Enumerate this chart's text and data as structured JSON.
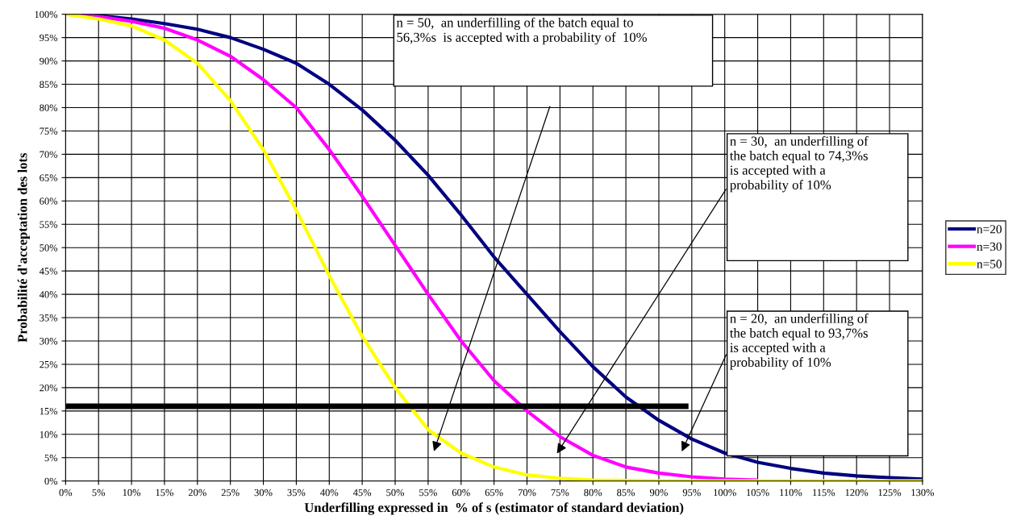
{
  "chart_data": {
    "type": "line",
    "xlabel": "Underfilling expressed in  % of s (estimator of standard deviation)",
    "ylabel": "Probabilité d'acceptation des lots",
    "x": [
      0,
      5,
      10,
      15,
      20,
      25,
      30,
      35,
      40,
      45,
      50,
      55,
      60,
      65,
      70,
      75,
      80,
      85,
      90,
      95,
      100,
      105,
      110,
      115,
      120,
      125,
      130
    ],
    "series": [
      {
        "name": "n=20",
        "color": "#000080",
        "values": [
          100,
          99.7,
          99,
          98,
          96.8,
          95,
          92.5,
          89.5,
          85,
          79.5,
          73,
          65.5,
          57,
          48,
          40,
          32,
          24.5,
          18,
          13,
          9,
          6,
          4,
          2.7,
          1.7,
          1.1,
          0.7,
          0.4
        ]
      },
      {
        "name": "n=30",
        "color": "#ff00ff",
        "values": [
          100,
          99.5,
          98.5,
          97,
          94.5,
          91,
          86,
          80,
          71,
          61,
          50.5,
          40,
          30,
          21.5,
          15,
          9.5,
          5.5,
          3,
          1.7,
          0.9,
          0.4,
          0.2,
          null,
          null,
          null,
          null,
          null
        ]
      },
      {
        "name": "n=50",
        "color": "#ffff00",
        "values": [
          100,
          99,
          97.5,
          94.5,
          89.5,
          81.5,
          71,
          58,
          44,
          31,
          20,
          11,
          6,
          3,
          1.3,
          0.6,
          0.2,
          0.1,
          0,
          0,
          0,
          0,
          0,
          0,
          0,
          0,
          0
        ]
      },
      {
        "type": "line",
        "color": "#000000",
        "x": [
          0,
          94.5
        ],
        "values": [
          16,
          16
        ]
      }
    ],
    "xlim": [
      0,
      130
    ],
    "xticks": [
      {
        "value": 0,
        "label": "0%"
      },
      {
        "value": 5,
        "label": "5%"
      },
      {
        "value": 10,
        "label": "10%"
      },
      {
        "value": 15,
        "label": "15%"
      },
      {
        "value": 20,
        "label": "20%"
      },
      {
        "value": 25,
        "label": "25%"
      },
      {
        "value": 30,
        "label": "30%"
      },
      {
        "value": 35,
        "label": "35%"
      },
      {
        "value": 40,
        "label": "40%"
      },
      {
        "value": 45,
        "label": "45%"
      },
      {
        "value": 50,
        "label": "50%"
      },
      {
        "value": 55,
        "label": "55%"
      },
      {
        "value": 60,
        "label": "60%"
      },
      {
        "value": 65,
        "label": "65%"
      },
      {
        "value": 70,
        "label": "70%"
      },
      {
        "value": 75,
        "label": "75%"
      },
      {
        "value": 80,
        "label": "80%"
      },
      {
        "value": 85,
        "label": "85%"
      },
      {
        "value": 90,
        "label": "90%"
      },
      {
        "value": 95,
        "label": "95%"
      },
      {
        "value": 100,
        "label": "100%"
      },
      {
        "value": 105,
        "label": "105%"
      },
      {
        "value": 110,
        "label": "110%"
      },
      {
        "value": 115,
        "label": "115%"
      },
      {
        "value": 120,
        "label": "120%"
      },
      {
        "value": 125,
        "label": "125%"
      },
      {
        "value": 130,
        "label": "130%"
      }
    ],
    "ylim": [
      0,
      100
    ],
    "yticks": [
      {
        "value": 0,
        "label": "0%"
      },
      {
        "value": 5,
        "label": "5%"
      },
      {
        "value": 10,
        "label": "10%"
      },
      {
        "value": 15,
        "label": "15%"
      },
      {
        "value": 20,
        "label": "20%"
      },
      {
        "value": 25,
        "label": "25%"
      },
      {
        "value": 30,
        "label": "30%"
      },
      {
        "value": 35,
        "label": "35%"
      },
      {
        "value": 40,
        "label": "40%"
      },
      {
        "value": 45,
        "label": "45%"
      },
      {
        "value": 50,
        "label": "50%"
      },
      {
        "value": 55,
        "label": "55%"
      },
      {
        "value": 60,
        "label": "60%"
      },
      {
        "value": 65,
        "label": "65%"
      },
      {
        "value": 70,
        "label": "70%"
      },
      {
        "value": 75,
        "label": "75%"
      },
      {
        "value": 80,
        "label": "80%"
      },
      {
        "value": 85,
        "label": "85%"
      },
      {
        "value": 90,
        "label": "90%"
      },
      {
        "value": 95,
        "label": "95%"
      },
      {
        "value": 100,
        "label": "100%"
      }
    ],
    "annotations": [
      "n = 50,  an underfilling of the batch equal to\n56,3%s  is accepted with a probability of  10%",
      "n = 30,  an underfilling of\nthe batch equal to 74,3%s\nis accepted with a\nprobability of 10%",
      "n = 20,  an underfilling of\nthe batch equal to 93,7%s\nis accepted with a\nprobability of 10%"
    ],
    "grid": true,
    "legend": "right",
    "marker": "none",
    "line_style": "solid"
  }
}
